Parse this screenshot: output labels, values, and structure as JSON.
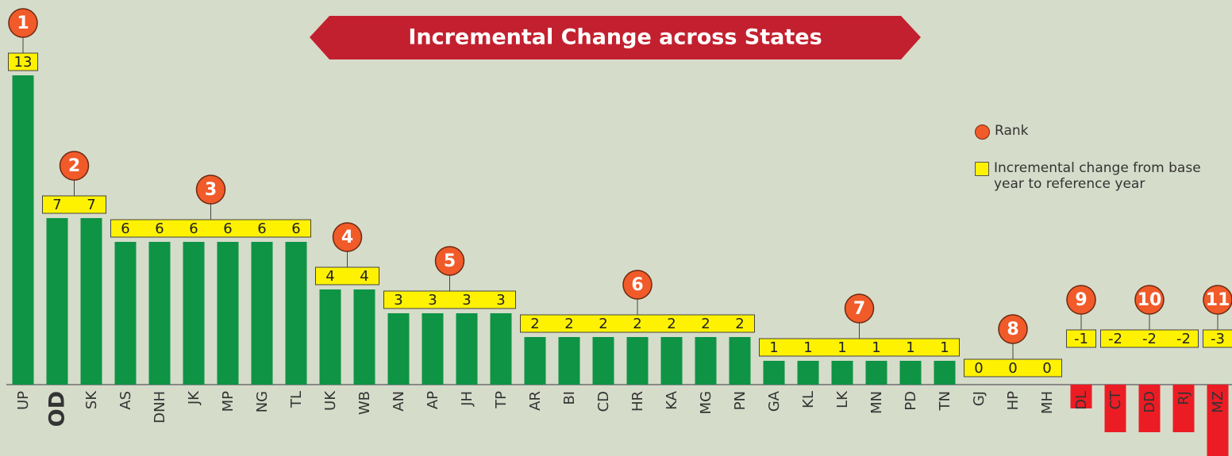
{
  "chart_data": {
    "type": "bar",
    "title": "Incremental Change across States",
    "categories": [
      "UP",
      "OD",
      "SK",
      "AS",
      "DNH",
      "JK",
      "MP",
      "NG",
      "TL",
      "UK",
      "WB",
      "AN",
      "AP",
      "JH",
      "TP",
      "AR",
      "BI",
      "CD",
      "HR",
      "KA",
      "MG",
      "PN",
      "GA",
      "KL",
      "LK",
      "MN",
      "PD",
      "TN",
      "GJ",
      "HP",
      "MH",
      "DL",
      "CT",
      "DD",
      "RJ",
      "MZ"
    ],
    "values": [
      13,
      7,
      7,
      6,
      6,
      6,
      6,
      6,
      6,
      4,
      4,
      3,
      3,
      3,
      3,
      2,
      2,
      2,
      2,
      2,
      2,
      2,
      1,
      1,
      1,
      1,
      1,
      1,
      0,
      0,
      0,
      -1,
      -2,
      -2,
      -2,
      -3
    ],
    "ranks": [
      1,
      2,
      2,
      3,
      3,
      3,
      3,
      3,
      3,
      4,
      4,
      5,
      5,
      5,
      5,
      6,
      6,
      6,
      6,
      6,
      6,
      6,
      7,
      7,
      7,
      7,
      7,
      7,
      8,
      8,
      8,
      9,
      10,
      10,
      10,
      11
    ],
    "highlight": "OD",
    "positive_color": "#0e9444",
    "negative_color": "#ec1c24",
    "ylim": [
      -3,
      13
    ],
    "legend": {
      "rank": "Rank",
      "change": "Incremental change from base year to reference year"
    }
  }
}
